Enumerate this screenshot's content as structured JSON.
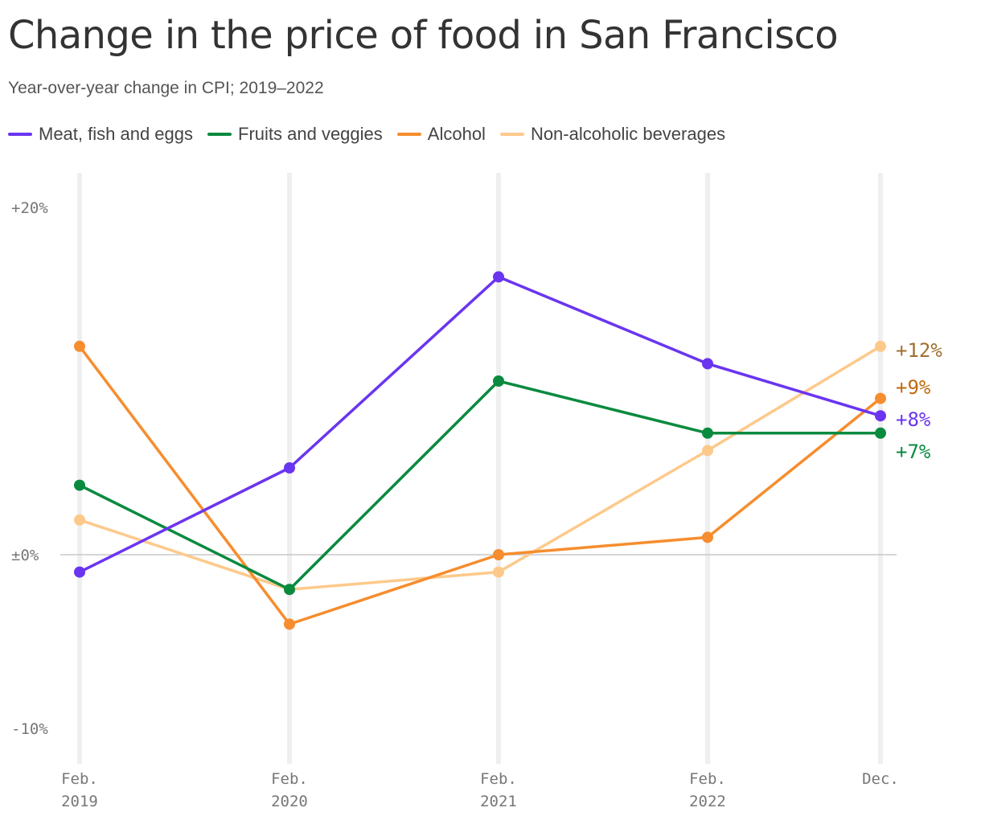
{
  "title": "Change in the price of food in San Francisco",
  "subtitle": "Year-over-year change in CPI; 2019–2022",
  "chart_data": {
    "type": "line",
    "title": "Change in the price of food in San Francisco",
    "subtitle": "Year-over-year change in CPI; 2019–2022",
    "categories": [
      [
        "Feb.",
        "2019"
      ],
      [
        "Feb.",
        "2020"
      ],
      [
        "Feb.",
        "2021"
      ],
      [
        "Feb.",
        "2022"
      ],
      [
        "Dec.",
        ""
      ]
    ],
    "ylim": [
      -11.5,
      22
    ],
    "yticks": [
      {
        "value": 20,
        "label": "+20%"
      },
      {
        "value": 0,
        "label": "±0%"
      },
      {
        "value": -10,
        "label": "-10%"
      }
    ],
    "grid": "vertical",
    "legend_position": "top-left",
    "series": [
      {
        "name": "Non-alcoholic beverages",
        "color": "#fdc98b",
        "values": [
          2,
          -2,
          -1,
          6,
          12
        ],
        "end_label": "+12%",
        "end_label_color": "#a07030"
      },
      {
        "name": "Alcohol",
        "color": "#f68d2e",
        "values": [
          12,
          -4,
          0,
          1,
          9
        ],
        "end_label": "+9%",
        "end_label_color": "#c06a10"
      },
      {
        "name": "Fruits and veggies",
        "color": "#0a8a3f",
        "values": [
          4,
          -2,
          10,
          7,
          7
        ],
        "end_label": "+7%",
        "end_label_color": "#0a8a3f"
      },
      {
        "name": "Meat, fish and eggs",
        "color": "#6a35f0",
        "values": [
          -1,
          5,
          16,
          11,
          8
        ],
        "end_label": "+8%",
        "end_label_color": "#6a35f0"
      }
    ],
    "legend_order": [
      "Meat, fish and eggs",
      "Fruits and veggies",
      "Alcohol",
      "Non-alcoholic beverages"
    ]
  }
}
